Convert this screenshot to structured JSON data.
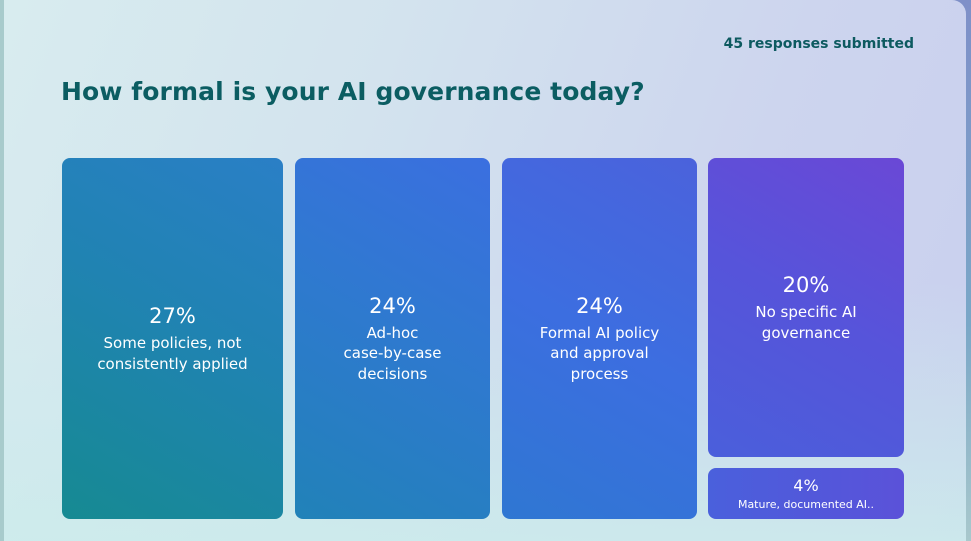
{
  "header": {
    "responses_text": "45 responses submitted",
    "title": "How formal is your AI governance today?"
  },
  "tiles": [
    {
      "percent": "27%",
      "label_lines": [
        "Some policies, not",
        "consistently applied"
      ]
    },
    {
      "percent": "24%",
      "label_lines": [
        "Ad-hoc",
        "case-by-case",
        "decisions"
      ]
    },
    {
      "percent": "24%",
      "label_lines": [
        "Formal AI policy",
        "and approval",
        "process"
      ]
    },
    {
      "percent": "20%",
      "label_lines": [
        "No specific AI",
        "governance"
      ]
    },
    {
      "percent": "4%",
      "label_lines": [
        "Mature, documented AI.."
      ]
    }
  ],
  "colors": {
    "title": "#0b5d62",
    "tile_teal": "#168a92",
    "tile_blue": "#3b6fe0",
    "tile_purple": "#6a48d6"
  },
  "chart_data": {
    "type": "treemap",
    "title": "How formal is your AI governance today?",
    "subtitle": "45 responses submitted",
    "categories": [
      "Some policies, not consistently applied",
      "Ad-hoc case-by-case decisions",
      "Formal AI policy and approval process",
      "No specific AI governance",
      "Mature, documented AI.."
    ],
    "values": [
      27,
      24,
      24,
      20,
      4
    ],
    "unit": "%",
    "total_responses": 45
  }
}
